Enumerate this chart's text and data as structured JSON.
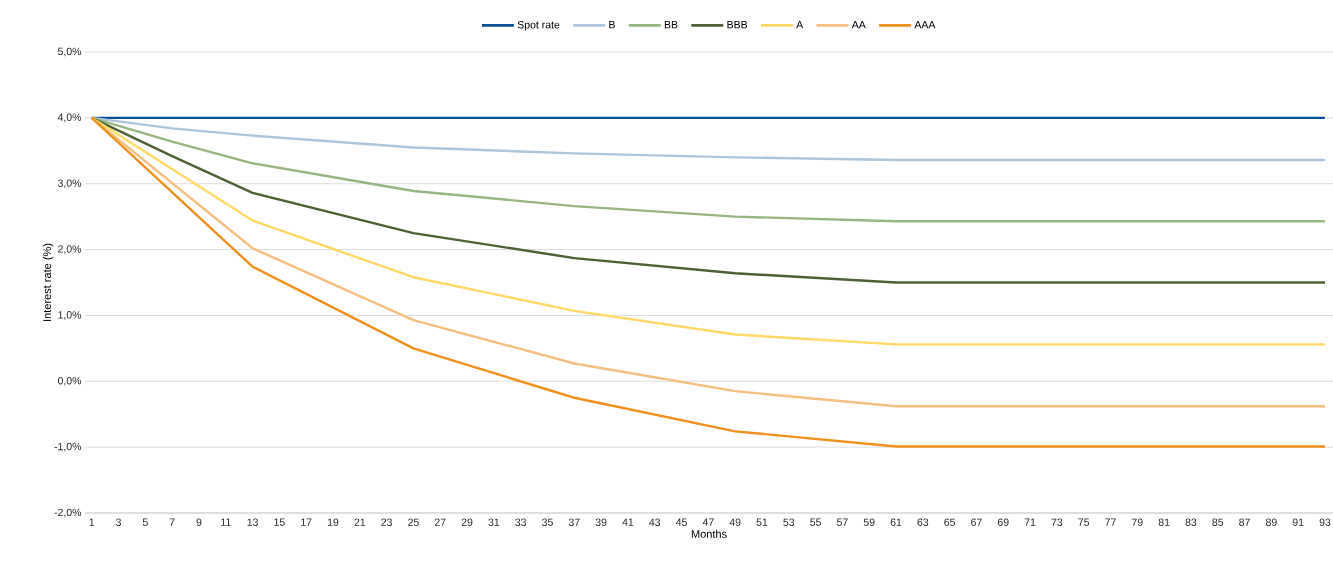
{
  "chart_data": {
    "type": "line",
    "xlabel": "Months",
    "ylabel": "Interest rate (%)",
    "xlim": [
      0.5,
      93.6
    ],
    "ylim": [
      -2,
      5
    ],
    "xticks": [
      1,
      3,
      5,
      7,
      9,
      11,
      13,
      15,
      17,
      19,
      21,
      23,
      25,
      27,
      29,
      31,
      33,
      35,
      37,
      39,
      41,
      43,
      45,
      47,
      49,
      51,
      53,
      55,
      57,
      59,
      61,
      63,
      65,
      67,
      69,
      71,
      73,
      75,
      77,
      79,
      81,
      83,
      85,
      87,
      89,
      91,
      93
    ],
    "yticks": [
      {
        "value": -2,
        "label": "-2,0%"
      },
      {
        "value": -1,
        "label": "-1,0%"
      },
      {
        "value": 0,
        "label": "0,0%"
      },
      {
        "value": 1,
        "label": "1,0%"
      },
      {
        "value": 2,
        "label": "2,0%"
      },
      {
        "value": 3,
        "label": "3,0%"
      },
      {
        "value": 4,
        "label": "4,0%"
      },
      {
        "value": 5,
        "label": "5,0%"
      }
    ],
    "grid": "y",
    "legend": "top",
    "line_style": "solid",
    "marker": "none",
    "series": [
      {
        "name": "Spot rate",
        "color": "#0b4f95",
        "x": [
          1,
          93
        ],
        "values": [
          4,
          4
        ]
      },
      {
        "name": "B",
        "color": "#adc6dc",
        "x": [
          1,
          7,
          13,
          25,
          37,
          49,
          61,
          93
        ],
        "values": [
          4,
          3.84,
          3.73,
          3.55,
          3.46,
          3.4,
          3.36,
          3.36
        ]
      },
      {
        "name": "BB",
        "color": "#98b682",
        "x": [
          1,
          7,
          13,
          25,
          37,
          49,
          61,
          93
        ],
        "values": [
          4,
          3.64,
          3.31,
          2.89,
          2.66,
          2.5,
          2.43,
          2.43
        ]
      },
      {
        "name": "BBB",
        "color": "#4e6135",
        "x": [
          1,
          7,
          13,
          25,
          37,
          49,
          61,
          93
        ],
        "values": [
          4,
          3.42,
          2.86,
          2.25,
          1.87,
          1.64,
          1.5,
          1.5
        ]
      },
      {
        "name": "A",
        "color": "#ffd966",
        "x": [
          1,
          13,
          25,
          37,
          49,
          61,
          93
        ],
        "values": [
          4,
          2.44,
          1.58,
          1.07,
          0.71,
          0.56,
          0.56
        ]
      },
      {
        "name": "AA",
        "color": "#f4bf80",
        "x": [
          1,
          13,
          25,
          37,
          49,
          61,
          93
        ],
        "values": [
          4,
          2.02,
          0.93,
          0.27,
          -0.15,
          -0.38,
          -0.38
        ]
      },
      {
        "name": "AAA",
        "color": "#f0901e",
        "x": [
          1,
          13,
          25,
          37,
          49,
          61,
          93
        ],
        "values": [
          4,
          1.74,
          0.5,
          -0.25,
          -0.76,
          -0.99,
          -0.99
        ]
      }
    ]
  }
}
